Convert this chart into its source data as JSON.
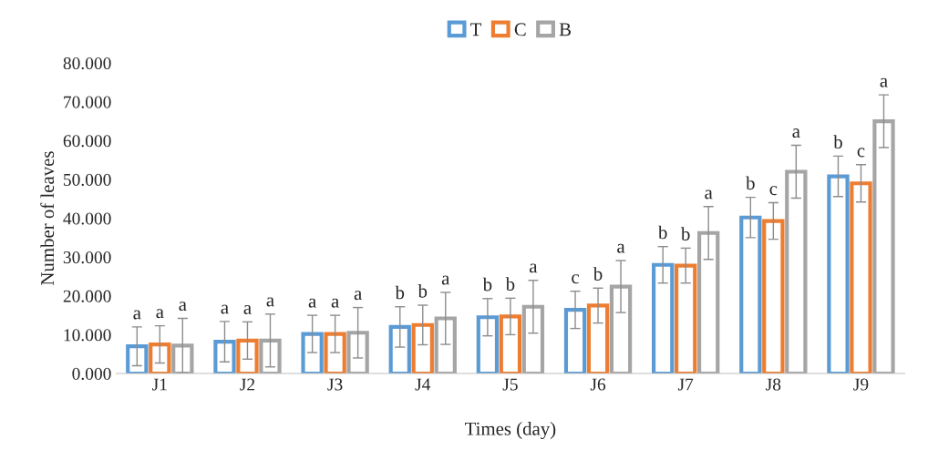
{
  "chart_data": {
    "type": "bar",
    "xlabel": "Times (day)",
    "ylabel": "Number of leaves",
    "categories": [
      "J1",
      "J2",
      "J3",
      "J4",
      "J5",
      "J6",
      "J7",
      "J8",
      "J9"
    ],
    "series": [
      {
        "name": "T",
        "color": "#5b9bd5",
        "values": [
          7,
          8.2,
          10.2,
          12,
          14.5,
          16.4,
          28,
          40.2,
          50.8
        ],
        "errors": [
          5,
          5.2,
          4.8,
          5.2,
          4.8,
          4.8,
          4.7,
          5.2,
          5.2
        ],
        "value_labels": [
          "a",
          "a",
          "a",
          "b",
          "b",
          "c",
          "b",
          "b",
          "b"
        ]
      },
      {
        "name": "C",
        "color": "#ed7d31",
        "values": [
          7.5,
          8.5,
          10.2,
          12.5,
          14.7,
          17.5,
          27.8,
          39.3,
          49
        ],
        "errors": [
          4.8,
          4.8,
          4.8,
          5.1,
          4.7,
          4.5,
          4.5,
          4.7,
          4.8
        ],
        "value_labels": [
          "a",
          "a",
          "a",
          "b",
          "b",
          "b",
          "b",
          "c",
          "c"
        ]
      },
      {
        "name": "B",
        "color": "#a5a5a5",
        "values": [
          7.2,
          8.5,
          10.5,
          14.2,
          17.2,
          22.4,
          36.2,
          52,
          65
        ],
        "errors": [
          7,
          6.8,
          6.5,
          6.7,
          6.8,
          6.7,
          6.8,
          6.8,
          6.8
        ],
        "value_labels": [
          "a",
          "a",
          "a",
          "a",
          "a",
          "a",
          "a",
          "a",
          "a"
        ]
      }
    ],
    "ylim": [
      0,
      80
    ],
    "yticks": [
      {
        "value": 0,
        "label": "0.000"
      },
      {
        "value": 10,
        "label": "10.000"
      },
      {
        "value": 20,
        "label": "20.000"
      },
      {
        "value": 30,
        "label": "30.000"
      },
      {
        "value": 40,
        "label": "40.000"
      },
      {
        "value": 50,
        "label": "50.000"
      },
      {
        "value": 60,
        "label": "60.000"
      },
      {
        "value": 70,
        "label": "70.000"
      },
      {
        "value": 80,
        "label": "80.000"
      }
    ],
    "legend": "top",
    "grid": false
  }
}
